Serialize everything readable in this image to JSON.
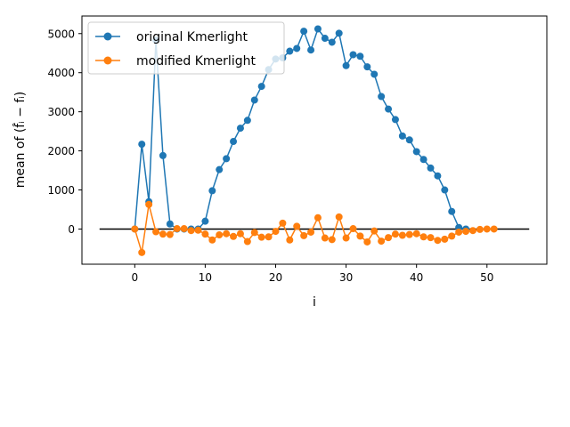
{
  "chart_data": {
    "type": "line",
    "xlabel": "i",
    "ylabel": "mean of (f̂ᵢ − fᵢ)",
    "xlim": [
      -7.5,
      58.5
    ],
    "ylim": [
      -900,
      5450
    ],
    "xticks": [
      0,
      10,
      20,
      30,
      40,
      50
    ],
    "yticks": [
      0,
      1000,
      2000,
      3000,
      4000,
      5000
    ],
    "grid": false,
    "legend_position": "top-left",
    "reference_line": {
      "x_start": -5,
      "x_end": 56,
      "y": 0,
      "color": "#000000"
    },
    "series": [
      {
        "name": "original Kmerlight",
        "color": "#1f77b4",
        "x": [
          0,
          1,
          2,
          3,
          4,
          5,
          6,
          7,
          8,
          9,
          10,
          11,
          12,
          13,
          14,
          15,
          16,
          17,
          18,
          19,
          20,
          21,
          22,
          23,
          24,
          25,
          26,
          27,
          28,
          29,
          30,
          31,
          32,
          33,
          34,
          35,
          36,
          37,
          38,
          39,
          40,
          41,
          42,
          43,
          44,
          45,
          46,
          47
        ],
        "values": [
          0,
          2170,
          700,
          4830,
          1880,
          130,
          0,
          0,
          0,
          0,
          200,
          980,
          1520,
          1800,
          2240,
          2580,
          2780,
          3300,
          3650,
          4080,
          4350,
          4380,
          4550,
          4620,
          5060,
          4580,
          5120,
          4880,
          4780,
          5010,
          4180,
          4460,
          4420,
          4150,
          3960,
          3390,
          3070,
          2800,
          2380,
          2280,
          1980,
          1780,
          1560,
          1360,
          1000,
          450,
          40,
          0
        ]
      },
      {
        "name": "modified Kmerlight",
        "color": "#ff7f0e",
        "x": [
          0,
          1,
          2,
          3,
          4,
          5,
          6,
          7,
          8,
          9,
          10,
          11,
          12,
          13,
          14,
          15,
          16,
          17,
          18,
          19,
          20,
          21,
          22,
          23,
          24,
          25,
          26,
          27,
          28,
          29,
          30,
          31,
          32,
          33,
          34,
          35,
          36,
          37,
          38,
          39,
          40,
          41,
          42,
          43,
          44,
          45,
          46,
          47,
          48,
          49,
          50,
          51
        ],
        "values": [
          0,
          -600,
          630,
          -70,
          -130,
          -140,
          10,
          10,
          -40,
          -30,
          -130,
          -280,
          -150,
          -120,
          -190,
          -120,
          -320,
          -90,
          -210,
          -200,
          -60,
          150,
          -280,
          70,
          -170,
          -80,
          290,
          -230,
          -270,
          310,
          -230,
          10,
          -180,
          -330,
          -50,
          -310,
          -220,
          -130,
          -160,
          -140,
          -120,
          -200,
          -220,
          -290,
          -260,
          -180,
          -80,
          -60,
          -40,
          -10,
          0,
          0
        ]
      }
    ]
  }
}
